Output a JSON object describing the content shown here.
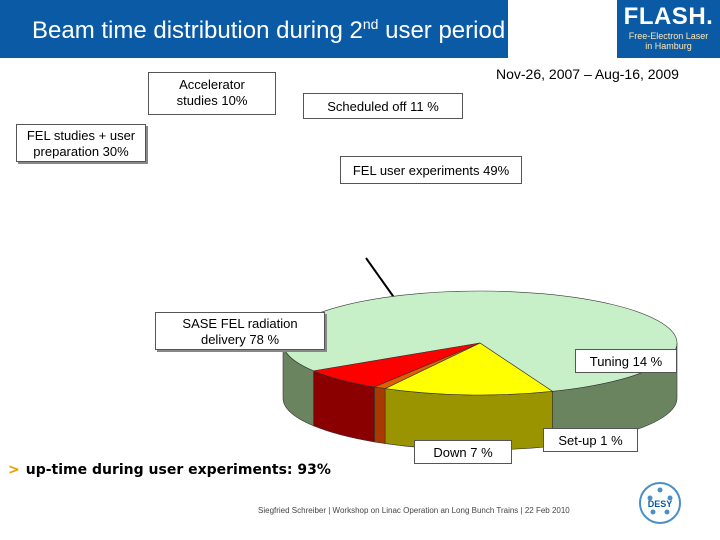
{
  "slide": {
    "title": "Beam time distribution during 2",
    "title_sup": "nd",
    "title_end": " user period",
    "logo_main": "FLASH.",
    "logo_sub1": "Free-Electron Laser",
    "logo_sub2": "in Hamburg",
    "date_range": "Nov-26, 2007 – Aug-16, 2009",
    "boxes": {
      "accelerator_1": "Accelerator",
      "accelerator_2": "studies 10%",
      "scheduled_off": "Scheduled off  11 %",
      "fel_studies_1": "FEL studies + user",
      "fel_studies_2": "preparation 30%",
      "fel_user_exp": "FEL user experiments 49%"
    },
    "uptime_marker": ">",
    "uptime_text": "up-time during user experiments: 93%",
    "footer": "Siegfried Schreiber  | Workshop on Linac Operation an Long Bunch Trains  |  22 Feb 2010",
    "desy_label": "DESY"
  },
  "chart_data": {
    "type": "pie",
    "style": "3d",
    "title": "",
    "slices": [
      {
        "label": "SASE FEL radiation delivery 78 %",
        "label_1": "SASE FEL radiation",
        "label_2": "delivery 78 %",
        "value": 78,
        "color": "#c8f0c8",
        "side_color": "#6a8460"
      },
      {
        "label": "Tuning 14 %",
        "value": 14,
        "color": "#ffff00",
        "side_color": "#9a9400"
      },
      {
        "label": "Set-up 1 %",
        "value": 1,
        "color": "#e06000",
        "side_color": "#a83a00"
      },
      {
        "label": "Down 7 %",
        "value": 7,
        "color": "#ff0000",
        "side_color": "#8a0000"
      }
    ]
  }
}
